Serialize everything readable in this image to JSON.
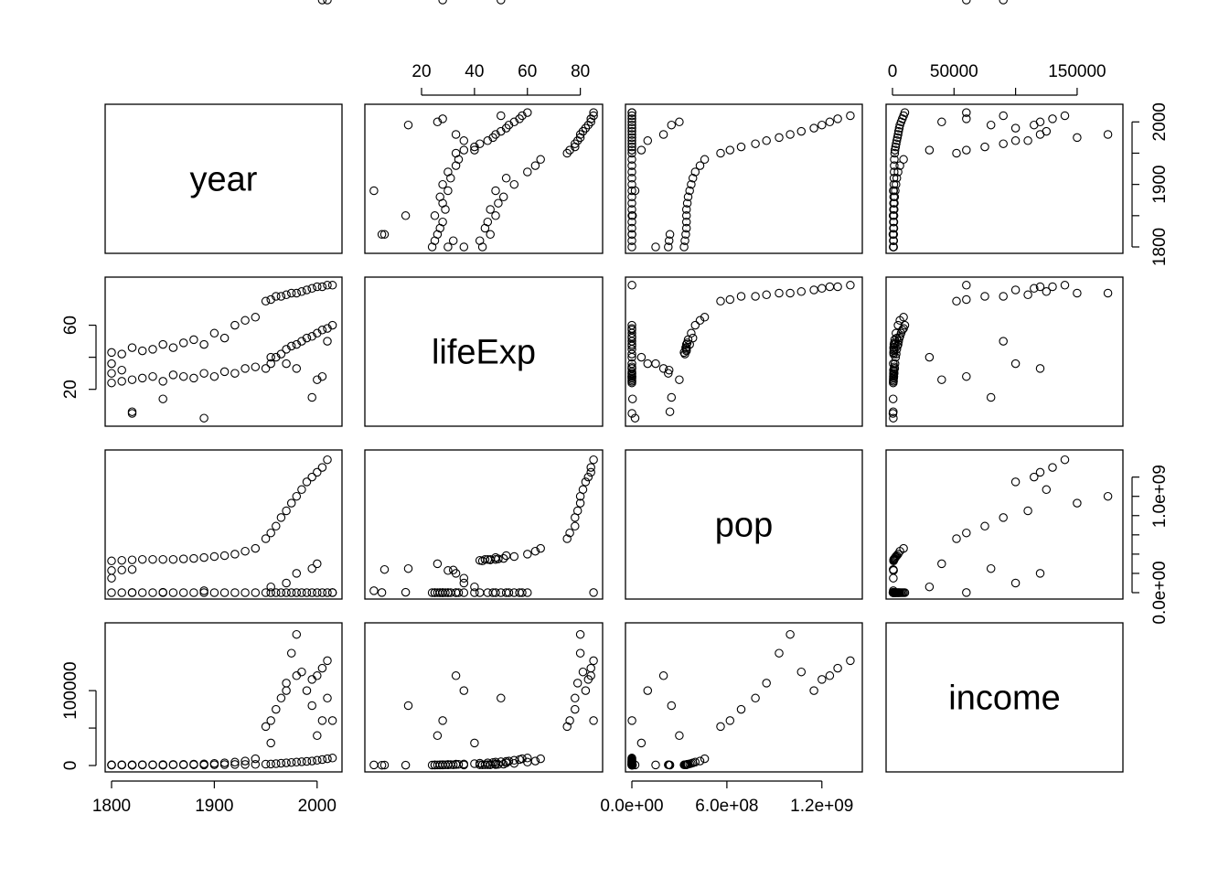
{
  "chart_data": {
    "type": "scatter",
    "subtype": "pairs-matrix",
    "variables": [
      "year",
      "lifeExp",
      "pop",
      "income"
    ],
    "ranges": {
      "year": [
        1800,
        2018
      ],
      "lifeExp": [
        1,
        86
      ],
      "pop": [
        0,
        1415000000
      ],
      "income": [
        0,
        182000
      ]
    },
    "axes": {
      "bottom": [
        {
          "column": 0,
          "variable": "year",
          "ticks": [
            1800,
            1900,
            2000
          ],
          "labels": [
            "1800",
            "1900",
            "2000"
          ]
        },
        {
          "column": 2,
          "variable": "pop",
          "ticks": [
            0,
            600000000,
            1200000000
          ],
          "labels": [
            "0.0e+00",
            "6.0e+08",
            "1.2e+09"
          ]
        }
      ],
      "top": [
        {
          "column": 1,
          "variable": "lifeExp",
          "ticks": [
            20,
            40,
            60,
            80
          ],
          "labels": [
            "20",
            "40",
            "60",
            "80"
          ]
        },
        {
          "column": 3,
          "variable": "income",
          "ticks": [
            0,
            50000,
            150000
          ],
          "labels": [
            "0",
            "50000",
            "150000"
          ],
          "minor_ticks": [
            100000
          ]
        }
      ],
      "left": [
        {
          "row": 1,
          "variable": "lifeExp",
          "ticks": [
            20,
            60
          ],
          "labels": [
            "20",
            "60"
          ],
          "minor_ticks": [
            40
          ]
        },
        {
          "row": 3,
          "variable": "income",
          "ticks": [
            0,
            100000
          ],
          "labels": [
            "0",
            "100000"
          ],
          "minor_ticks": [
            50000
          ]
        }
      ],
      "right": [
        {
          "row": 0,
          "variable": "year",
          "ticks": [
            1800,
            1900,
            2000
          ],
          "labels": [
            "1800",
            "1900",
            "2000"
          ],
          "minor_ticks": [
            1850,
            1950
          ]
        },
        {
          "row": 2,
          "variable": "pop",
          "ticks": [
            0,
            1000000000
          ],
          "labels": [
            "0.0e+00",
            "1.0e+09"
          ],
          "minor_ticks": [
            200000000,
            400000000,
            600000000,
            800000000,
            1200000000
          ]
        }
      ]
    },
    "marker": "open-circle",
    "notes": "Gapminder-style data; dense point clouds approximated from the image",
    "data": {
      "year": [
        1800,
        1800,
        1800,
        1800,
        1810,
        1810,
        1810,
        1820,
        1820,
        1820,
        1830,
        1830,
        1840,
        1840,
        1850,
        1850,
        1860,
        1860,
        1870,
        1870,
        1880,
        1880,
        1890,
        1890,
        1900,
        1900,
        1910,
        1910,
        1920,
        1920,
        1930,
        1930,
        1940,
        1940,
        1950,
        1950,
        1955,
        1955,
        1960,
        1960,
        1965,
        1965,
        1970,
        1970,
        1975,
        1975,
        1980,
        1980,
        1985,
        1985,
        1990,
        1990,
        1995,
        1995,
        2000,
        2000,
        2005,
        2005,
        2010,
        2010,
        2015,
        2015,
        1820,
        1850,
        1890,
        1955,
        1970,
        1980,
        1995,
        2000,
        2005,
        2010
      ],
      "lifeExp": [
        24,
        43,
        30,
        36,
        25,
        42,
        32,
        26,
        46,
        6,
        27,
        44,
        28,
        45,
        25,
        48,
        29,
        46,
        28,
        49,
        27,
        51,
        30,
        48,
        28,
        55,
        31,
        52,
        30,
        60,
        33,
        63,
        34,
        65,
        33,
        75,
        36,
        76,
        40,
        78,
        42,
        78,
        45,
        79,
        47,
        80,
        48,
        80,
        50,
        81,
        52,
        82,
        53,
        83,
        55,
        84,
        57,
        84,
        58,
        85,
        60,
        85,
        5,
        14,
        2,
        40,
        36,
        33,
        15,
        26,
        28,
        50
      ],
      "pop": [
        1000,
        330000000,
        230000000,
        150000000,
        1000,
        335000000,
        235000000,
        1000,
        340000000,
        240000000,
        1000,
        345000000,
        1000,
        345000000,
        1000,
        345000000,
        1000,
        345000000,
        1000,
        350000000,
        1000,
        355000000,
        1000,
        365000000,
        1000,
        375000000,
        1000,
        385000000,
        1000,
        400000000,
        1000,
        430000000,
        1000,
        460000000,
        1000,
        560000000,
        1000,
        620000000,
        1000,
        690000000,
        1000,
        780000000,
        1000,
        850000000,
        1000,
        930000000,
        1000,
        1000000000,
        1000,
        1070000000,
        1000,
        1150000000,
        1000,
        1200000000,
        1000,
        1250000000,
        1000,
        1300000000,
        1000,
        1380000000,
        200000,
        800000,
        600000,
        4000000,
        20000000,
        60000000,
        100000000,
        200000000,
        250000000,
        300000000
      ],
      "income": [
        600,
        900,
        800,
        700,
        650,
        950,
        820,
        700,
        1000,
        600,
        720,
        1100,
        750,
        1150,
        800,
        1200,
        850,
        1300,
        900,
        1500,
        950,
        1800,
        1000,
        2200,
        1100,
        2800,
        1200,
        3500,
        1300,
        4500,
        1400,
        6000,
        1500,
        9000,
        1800,
        52000,
        2000,
        60000,
        2500,
        75000,
        3000,
        90000,
        3500,
        110000,
        4000,
        150000,
        4500,
        175000,
        5000,
        125000,
        5500,
        100000,
        6000,
        115000,
        7000,
        120000,
        8000,
        130000,
        9000,
        140000,
        10000,
        60000,
        400,
        500,
        700,
        30000,
        100000,
        120000,
        80000,
        40000,
        60000,
        90000
      ]
    }
  }
}
